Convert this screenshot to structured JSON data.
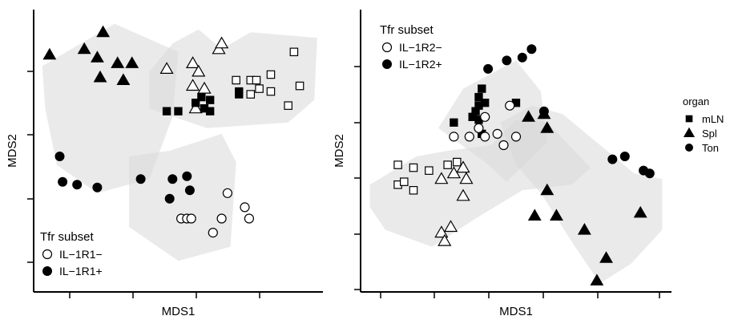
{
  "chart_data": [
    {
      "type": "scatter",
      "xlabel": "MDS1",
      "ylabel": "MDS2",
      "xlim": [
        0,
        100
      ],
      "ylim": [
        0,
        100
      ],
      "legend": {
        "title": "Tfr subset",
        "placement": "bottom-left",
        "entries": [
          {
            "label": "IL−1R1−",
            "fill": "open"
          },
          {
            "label": "IL−1R1+",
            "fill": "filled"
          }
        ]
      },
      "hulls": [
        [
          [
            3,
            80
          ],
          [
            28,
            95
          ],
          [
            50,
            85
          ],
          [
            48,
            62
          ],
          [
            40,
            40
          ],
          [
            22,
            35
          ],
          [
            8,
            45
          ],
          [
            4,
            65
          ]
        ],
        [
          [
            40,
            78
          ],
          [
            48,
            88
          ],
          [
            57,
            93
          ],
          [
            65,
            86
          ],
          [
            75,
            92
          ],
          [
            98,
            90
          ],
          [
            97,
            68
          ],
          [
            88,
            60
          ],
          [
            60,
            58
          ],
          [
            40,
            65
          ]
        ],
        [
          [
            33,
            48
          ],
          [
            47,
            50
          ],
          [
            65,
            56
          ],
          [
            70,
            46
          ],
          [
            68,
            16
          ],
          [
            50,
            11
          ],
          [
            33,
            23
          ]
        ]
      ],
      "points": [
        {
          "x": 5.5,
          "y": 84,
          "shape": "triangle",
          "fill": "filled"
        },
        {
          "x": 24,
          "y": 92,
          "shape": "triangle",
          "fill": "filled"
        },
        {
          "x": 17.5,
          "y": 86,
          "shape": "triangle",
          "fill": "filled"
        },
        {
          "x": 22,
          "y": 83,
          "shape": "triangle",
          "fill": "filled"
        },
        {
          "x": 29,
          "y": 81,
          "shape": "triangle",
          "fill": "filled"
        },
        {
          "x": 34,
          "y": 81,
          "shape": "triangle",
          "fill": "filled"
        },
        {
          "x": 23,
          "y": 76,
          "shape": "triangle",
          "fill": "filled"
        },
        {
          "x": 31,
          "y": 75,
          "shape": "triangle",
          "fill": "filled"
        },
        {
          "x": 46,
          "y": 79,
          "shape": "triangle",
          "fill": "open"
        },
        {
          "x": 55,
          "y": 81,
          "shape": "triangle",
          "fill": "open"
        },
        {
          "x": 57,
          "y": 78,
          "shape": "triangle",
          "fill": "open"
        },
        {
          "x": 55,
          "y": 73,
          "shape": "triangle",
          "fill": "open"
        },
        {
          "x": 59,
          "y": 72,
          "shape": "triangle",
          "fill": "open"
        },
        {
          "x": 56,
          "y": 65,
          "shape": "triangle",
          "fill": "open"
        },
        {
          "x": 64,
          "y": 86,
          "shape": "triangle",
          "fill": "open"
        },
        {
          "x": 65,
          "y": 88,
          "shape": "triangle",
          "fill": "open"
        },
        {
          "x": 46,
          "y": 64,
          "shape": "square",
          "fill": "filled"
        },
        {
          "x": 50,
          "y": 64,
          "shape": "square",
          "fill": "filled"
        },
        {
          "x": 56,
          "y": 67,
          "shape": "square",
          "fill": "filled"
        },
        {
          "x": 58,
          "y": 69,
          "shape": "square",
          "fill": "filled"
        },
        {
          "x": 61,
          "y": 64,
          "shape": "square",
          "fill": "filled"
        },
        {
          "x": 59,
          "y": 65,
          "shape": "square",
          "fill": "filled"
        },
        {
          "x": 61,
          "y": 68,
          "shape": "square",
          "fill": "filled"
        },
        {
          "x": 71,
          "y": 71,
          "shape": "square",
          "fill": "filled"
        },
        {
          "x": 71,
          "y": 70,
          "shape": "square",
          "fill": "filled"
        },
        {
          "x": 70,
          "y": 75,
          "shape": "square",
          "fill": "open"
        },
        {
          "x": 75,
          "y": 75,
          "shape": "square",
          "fill": "open"
        },
        {
          "x": 77,
          "y": 75,
          "shape": "square",
          "fill": "open"
        },
        {
          "x": 82,
          "y": 77,
          "shape": "square",
          "fill": "open"
        },
        {
          "x": 78,
          "y": 72,
          "shape": "square",
          "fill": "open"
        },
        {
          "x": 82,
          "y": 71,
          "shape": "square",
          "fill": "open"
        },
        {
          "x": 90,
          "y": 85,
          "shape": "square",
          "fill": "open"
        },
        {
          "x": 92,
          "y": 73,
          "shape": "square",
          "fill": "open"
        },
        {
          "x": 88,
          "y": 66,
          "shape": "square",
          "fill": "open"
        },
        {
          "x": 75,
          "y": 70,
          "shape": "square",
          "fill": "open"
        },
        {
          "x": 9,
          "y": 48,
          "shape": "circle",
          "fill": "filled"
        },
        {
          "x": 10,
          "y": 39,
          "shape": "circle",
          "fill": "filled"
        },
        {
          "x": 15,
          "y": 38,
          "shape": "circle",
          "fill": "filled"
        },
        {
          "x": 22,
          "y": 37,
          "shape": "circle",
          "fill": "filled"
        },
        {
          "x": 37,
          "y": 40,
          "shape": "circle",
          "fill": "filled"
        },
        {
          "x": 48,
          "y": 40,
          "shape": "circle",
          "fill": "filled"
        },
        {
          "x": 53,
          "y": 41,
          "shape": "circle",
          "fill": "filled"
        },
        {
          "x": 54,
          "y": 36,
          "shape": "circle",
          "fill": "filled"
        },
        {
          "x": 47,
          "y": 33,
          "shape": "circle",
          "fill": "filled"
        },
        {
          "x": 51,
          "y": 26,
          "shape": "circle",
          "fill": "open"
        },
        {
          "x": 53,
          "y": 26,
          "shape": "circle",
          "fill": "open"
        },
        {
          "x": 54.5,
          "y": 26,
          "shape": "circle",
          "fill": "open"
        },
        {
          "x": 62,
          "y": 21,
          "shape": "circle",
          "fill": "open"
        },
        {
          "x": 65,
          "y": 26,
          "shape": "circle",
          "fill": "open"
        },
        {
          "x": 67,
          "y": 35,
          "shape": "circle",
          "fill": "open"
        },
        {
          "x": 73,
          "y": 30,
          "shape": "circle",
          "fill": "open"
        },
        {
          "x": 74.5,
          "y": 26,
          "shape": "circle",
          "fill": "open"
        }
      ]
    },
    {
      "type": "scatter",
      "xlabel": "MDS1",
      "ylabel": "MDS2",
      "xlim": [
        0,
        100
      ],
      "ylim": [
        0,
        100
      ],
      "legend": {
        "title": "Tfr subset",
        "placement": "top-left",
        "entries": [
          {
            "label": "IL−1R2−",
            "fill": "open"
          },
          {
            "label": "IL−1R2+",
            "fill": "filled"
          }
        ]
      },
      "hulls": [
        [
          [
            3,
            38
          ],
          [
            18,
            48
          ],
          [
            28,
            50
          ],
          [
            42,
            52
          ],
          [
            50,
            61
          ],
          [
            60,
            60
          ],
          [
            74,
            44
          ],
          [
            68,
            38
          ],
          [
            52,
            36
          ],
          [
            37,
            26
          ],
          [
            23,
            16
          ],
          [
            8,
            22
          ],
          [
            3,
            30
          ]
        ],
        [
          [
            25,
            58
          ],
          [
            33,
            72
          ],
          [
            50,
            82
          ],
          [
            58,
            71
          ],
          [
            60,
            53
          ],
          [
            47,
            39
          ],
          [
            40,
            46
          ]
        ],
        [
          [
            45,
            60
          ],
          [
            55,
            66
          ],
          [
            65,
            63
          ],
          [
            88,
            42
          ],
          [
            97,
            40
          ],
          [
            97,
            22
          ],
          [
            87,
            10
          ],
          [
            77,
            3
          ],
          [
            69,
            16
          ],
          [
            58,
            35
          ],
          [
            50,
            45
          ]
        ]
      ],
      "points": [
        {
          "x": 30,
          "y": 60,
          "shape": "square",
          "fill": "filled"
        },
        {
          "x": 36,
          "y": 62,
          "shape": "square",
          "fill": "filled"
        },
        {
          "x": 37,
          "y": 64,
          "shape": "square",
          "fill": "filled"
        },
        {
          "x": 38,
          "y": 69,
          "shape": "square",
          "fill": "filled"
        },
        {
          "x": 38,
          "y": 66,
          "shape": "square",
          "fill": "filled"
        },
        {
          "x": 38,
          "y": 61,
          "shape": "square",
          "fill": "filled"
        },
        {
          "x": 39,
          "y": 72,
          "shape": "square",
          "fill": "filled"
        },
        {
          "x": 40,
          "y": 67,
          "shape": "square",
          "fill": "filled"
        },
        {
          "x": 39,
          "y": 56,
          "shape": "square",
          "fill": "filled"
        },
        {
          "x": 50,
          "y": 67,
          "shape": "square",
          "fill": "filled"
        },
        {
          "x": 12,
          "y": 45,
          "shape": "square",
          "fill": "open"
        },
        {
          "x": 17,
          "y": 44,
          "shape": "square",
          "fill": "open"
        },
        {
          "x": 22,
          "y": 43,
          "shape": "square",
          "fill": "open"
        },
        {
          "x": 12,
          "y": 38,
          "shape": "square",
          "fill": "open"
        },
        {
          "x": 14,
          "y": 39,
          "shape": "square",
          "fill": "open"
        },
        {
          "x": 17,
          "y": 36,
          "shape": "square",
          "fill": "open"
        },
        {
          "x": 28,
          "y": 45,
          "shape": "square",
          "fill": "open"
        },
        {
          "x": 31,
          "y": 46,
          "shape": "square",
          "fill": "open"
        },
        {
          "x": 26,
          "y": 40,
          "shape": "triangle",
          "fill": "open"
        },
        {
          "x": 30,
          "y": 42,
          "shape": "triangle",
          "fill": "open"
        },
        {
          "x": 33,
          "y": 44,
          "shape": "triangle",
          "fill": "open"
        },
        {
          "x": 33,
          "y": 34,
          "shape": "triangle",
          "fill": "open"
        },
        {
          "x": 26,
          "y": 21,
          "shape": "triangle",
          "fill": "open"
        },
        {
          "x": 29,
          "y": 23,
          "shape": "triangle",
          "fill": "open"
        },
        {
          "x": 27,
          "y": 18,
          "shape": "triangle",
          "fill": "open"
        },
        {
          "x": 34,
          "y": 40,
          "shape": "triangle",
          "fill": "open"
        },
        {
          "x": 30,
          "y": 55,
          "shape": "circle",
          "fill": "open"
        },
        {
          "x": 35,
          "y": 55,
          "shape": "circle",
          "fill": "open"
        },
        {
          "x": 40,
          "y": 55,
          "shape": "circle",
          "fill": "open"
        },
        {
          "x": 44,
          "y": 56,
          "shape": "circle",
          "fill": "open"
        },
        {
          "x": 46,
          "y": 52,
          "shape": "circle",
          "fill": "open"
        },
        {
          "x": 50,
          "y": 55,
          "shape": "circle",
          "fill": "open"
        },
        {
          "x": 48,
          "y": 66,
          "shape": "circle",
          "fill": "open"
        },
        {
          "x": 40,
          "y": 62,
          "shape": "circle",
          "fill": "open"
        },
        {
          "x": 38,
          "y": 58,
          "shape": "circle",
          "fill": "open"
        },
        {
          "x": 41,
          "y": 79,
          "shape": "circle",
          "fill": "filled"
        },
        {
          "x": 47,
          "y": 82,
          "shape": "circle",
          "fill": "filled"
        },
        {
          "x": 52,
          "y": 83,
          "shape": "circle",
          "fill": "filled"
        },
        {
          "x": 55,
          "y": 86,
          "shape": "circle",
          "fill": "filled"
        },
        {
          "x": 54,
          "y": 62,
          "shape": "triangle",
          "fill": "filled"
        },
        {
          "x": 59,
          "y": 63,
          "shape": "triangle",
          "fill": "filled"
        },
        {
          "x": 59,
          "y": 64,
          "shape": "circle",
          "fill": "filled"
        },
        {
          "x": 60,
          "y": 58,
          "shape": "triangle",
          "fill": "filled"
        },
        {
          "x": 60,
          "y": 36,
          "shape": "triangle",
          "fill": "filled"
        },
        {
          "x": 56,
          "y": 27,
          "shape": "triangle",
          "fill": "filled"
        },
        {
          "x": 63,
          "y": 27,
          "shape": "triangle",
          "fill": "filled"
        },
        {
          "x": 72,
          "y": 22,
          "shape": "triangle",
          "fill": "filled"
        },
        {
          "x": 79,
          "y": 12,
          "shape": "triangle",
          "fill": "filled"
        },
        {
          "x": 76,
          "y": 4,
          "shape": "triangle",
          "fill": "filled"
        },
        {
          "x": 90,
          "y": 28,
          "shape": "triangle",
          "fill": "filled"
        },
        {
          "x": 81,
          "y": 47,
          "shape": "circle",
          "fill": "filled"
        },
        {
          "x": 85,
          "y": 48,
          "shape": "circle",
          "fill": "filled"
        },
        {
          "x": 91,
          "y": 43,
          "shape": "circle",
          "fill": "filled"
        },
        {
          "x": 93,
          "y": 42,
          "shape": "circle",
          "fill": "filled"
        }
      ]
    }
  ],
  "organ_legend": {
    "title": "organ",
    "entries": [
      {
        "label": "mLN",
        "shape": "square"
      },
      {
        "label": "Spl",
        "shape": "triangle"
      },
      {
        "label": "Ton",
        "shape": "circle"
      }
    ]
  }
}
